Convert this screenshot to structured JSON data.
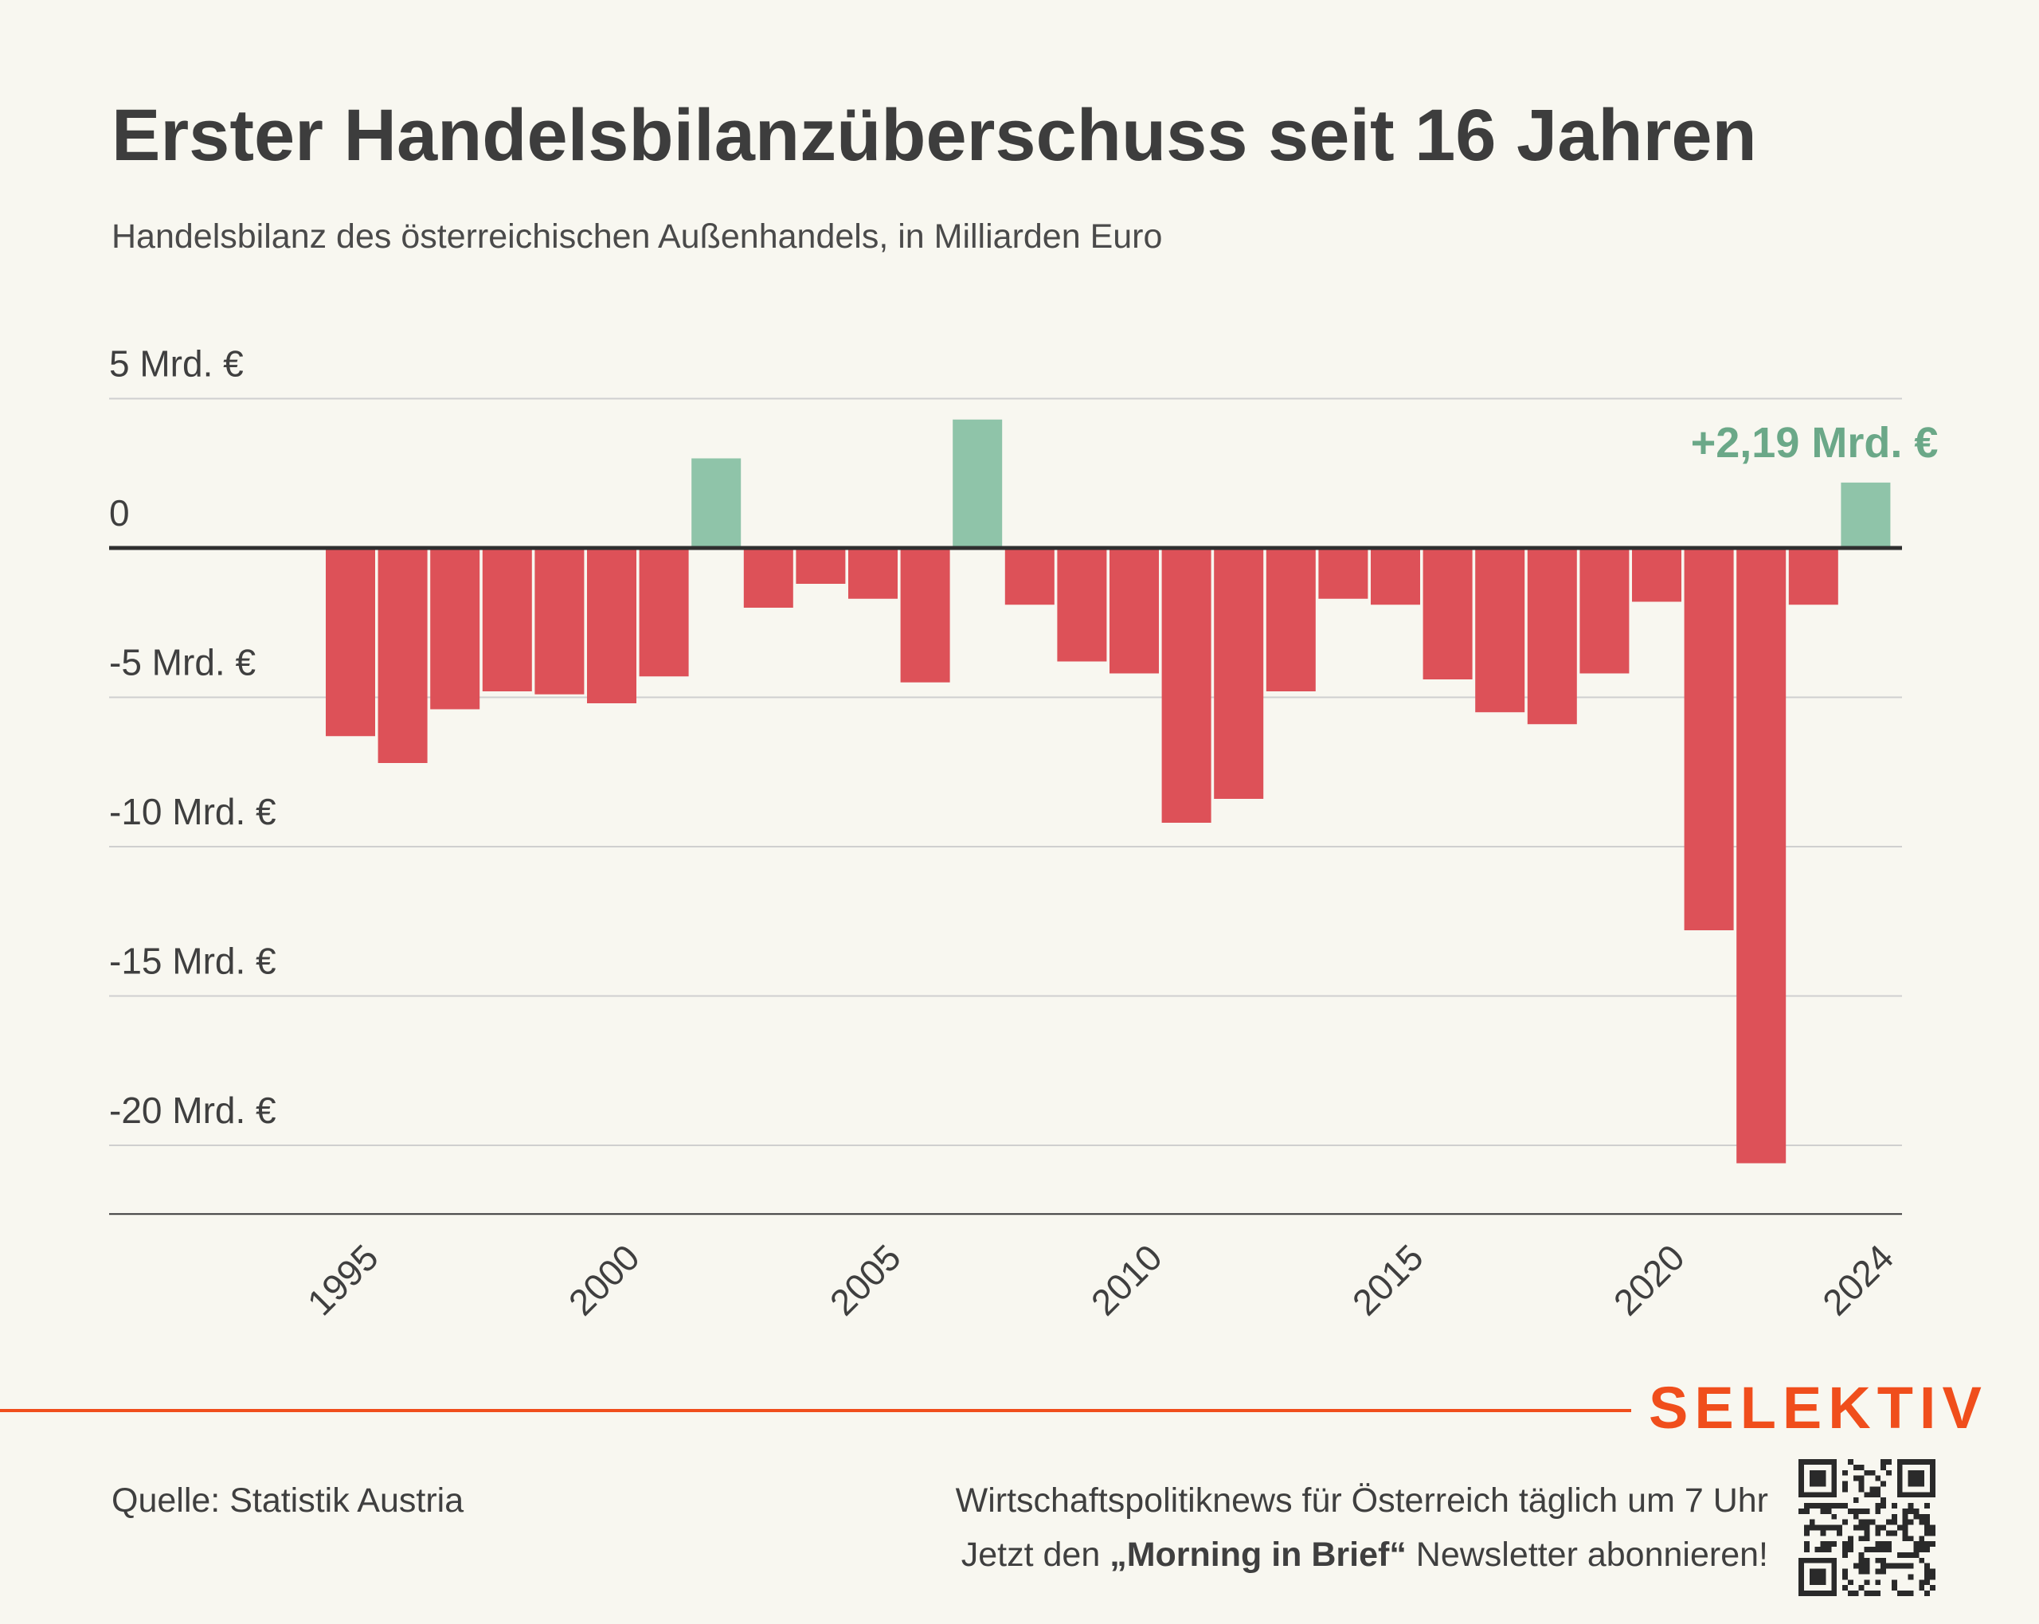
{
  "header": {
    "title": "Erster Handelsbilanzüberschuss seit 16 Jahren",
    "subtitle": "Handelsbilanz des österreichischen Außenhandels, in Milliarden Euro"
  },
  "chart_data": {
    "type": "bar",
    "title": "Erster Handelsbilanzüberschuss seit 16 Jahren",
    "subtitle": "Handelsbilanz des österreichischen Außenhandels, in Milliarden Euro",
    "x": [
      1995,
      1996,
      1997,
      1998,
      1999,
      2000,
      2001,
      2002,
      2003,
      2004,
      2005,
      2006,
      2007,
      2008,
      2009,
      2010,
      2011,
      2012,
      2013,
      2014,
      2015,
      2016,
      2017,
      2018,
      2019,
      2020,
      2021,
      2022,
      2023,
      2024
    ],
    "values": [
      -6.3,
      -7.2,
      -5.4,
      -4.8,
      -4.9,
      -5.2,
      -4.3,
      3.0,
      -2.0,
      -1.2,
      -1.7,
      -4.5,
      4.3,
      -1.9,
      -3.8,
      -4.2,
      -9.2,
      -8.4,
      -4.8,
      -1.7,
      -1.9,
      -4.4,
      -5.5,
      -5.9,
      -4.2,
      -1.8,
      -12.8,
      -20.6,
      -1.9,
      2.19
    ],
    "ylim": [
      -22.3,
      5
    ],
    "yticks": [
      {
        "value": 5,
        "label": "5 Mrd. €"
      },
      {
        "value": 0,
        "label": "0"
      },
      {
        "value": -5,
        "label": "-5 Mrd. €"
      },
      {
        "value": -10,
        "label": "-10 Mrd. €"
      },
      {
        "value": -15,
        "label": "-15 Mrd. €"
      },
      {
        "value": -20,
        "label": "-20 Mrd. €"
      }
    ],
    "xticks": [
      1995,
      2000,
      2005,
      2010,
      2015,
      2020,
      2024
    ],
    "annotation": {
      "year": 2024,
      "text": "+2,19 Mrd. €"
    },
    "colors": {
      "positive": "#8fc4a9",
      "negative": "#dd5158",
      "annotation": "#6ba888",
      "zero_line": "#2f2f2f",
      "grid": "#cfcfcf"
    },
    "grid": true,
    "legend": "none"
  },
  "footer": {
    "brand": "SELEKTIV",
    "source": "Quelle: Statistik Austria",
    "promo_line1": "Wirtschaftspolitiknews für Österreich täglich um 7 Uhr",
    "promo_line2_pre": "Jetzt den ",
    "promo_line2_bold": "„Morning in Brief“",
    "promo_line2_post": " Newsletter abonnieren!",
    "brand_color": "#f04e1c",
    "qr_icon": "qr-code-icon"
  }
}
